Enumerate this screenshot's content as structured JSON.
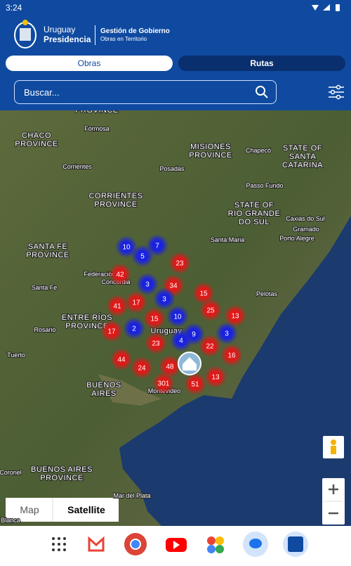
{
  "status_bar": {
    "time": "3:24"
  },
  "header": {
    "brand_top": "Uruguay",
    "brand_bottom": "Presidencia",
    "section_title": "Gestión de Gobierno",
    "section_subtitle": "Obras en Territorio"
  },
  "tabs": [
    "Obras",
    "Rutas"
  ],
  "search": {
    "placeholder": "Buscar..."
  },
  "map": {
    "labels": [
      "PROVINCE",
      "CHACO",
      "PROVINCE",
      "Formosa",
      "MISIONES",
      "PROVINCE",
      "Chapecó",
      "STATE OF",
      "SANTA",
      "CATARINA",
      "Corrientes",
      "Posadas",
      "Passo Fundo",
      "CORRIENTES",
      "PROVINCE",
      "STATE OF",
      "RIO GRANDE",
      "DO SUL",
      "Caxias do Sul",
      "Gramado",
      "Porto Alegre",
      "Santa Maria",
      "SANTA FE",
      "PROVINCE",
      "Federación",
      "Concordia",
      "Santa Fe",
      "Pelotas",
      "ENTRE RÍOS",
      "PROVINCE",
      "Rosario",
      "Uruguay",
      "Tuerto",
      "BUENOS",
      "AIRES",
      "Montevideo",
      "BUENOS AIRES",
      "PROVINCE",
      "Coronel",
      "Mar del Plata",
      "Blanca"
    ],
    "clusters": [
      {
        "count": 10,
        "color": "blue"
      },
      {
        "count": 7,
        "color": "blue"
      },
      {
        "count": 5,
        "color": "blue"
      },
      {
        "count": 23,
        "color": "red"
      },
      {
        "count": 42,
        "color": "red"
      },
      {
        "count": 3,
        "color": "blue"
      },
      {
        "count": 34,
        "color": "red"
      },
      {
        "count": 15,
        "color": "red"
      },
      {
        "count": 41,
        "color": "red"
      },
      {
        "count": 17,
        "color": "red"
      },
      {
        "count": 3,
        "color": "blue"
      },
      {
        "count": 10,
        "color": "blue"
      },
      {
        "count": 25,
        "color": "red"
      },
      {
        "count": 13,
        "color": "red"
      },
      {
        "count": 15,
        "color": "red"
      },
      {
        "count": 17,
        "color": "red"
      },
      {
        "count": 2,
        "color": "blue"
      },
      {
        "count": 9,
        "color": "blue"
      },
      {
        "count": 3,
        "color": "blue"
      },
      {
        "count": 4,
        "color": "blue"
      },
      {
        "count": 23,
        "color": "red"
      },
      {
        "count": 22,
        "color": "red"
      },
      {
        "count": 16,
        "color": "red"
      },
      {
        "count": 44,
        "color": "red"
      },
      {
        "count": 24,
        "color": "red"
      },
      {
        "count": 48,
        "color": "red"
      },
      {
        "count": 13,
        "color": "red"
      },
      {
        "count": 301,
        "color": "red"
      },
      {
        "count": 51,
        "color": "red"
      }
    ],
    "map_types": [
      "Map",
      "Satellite"
    ]
  }
}
